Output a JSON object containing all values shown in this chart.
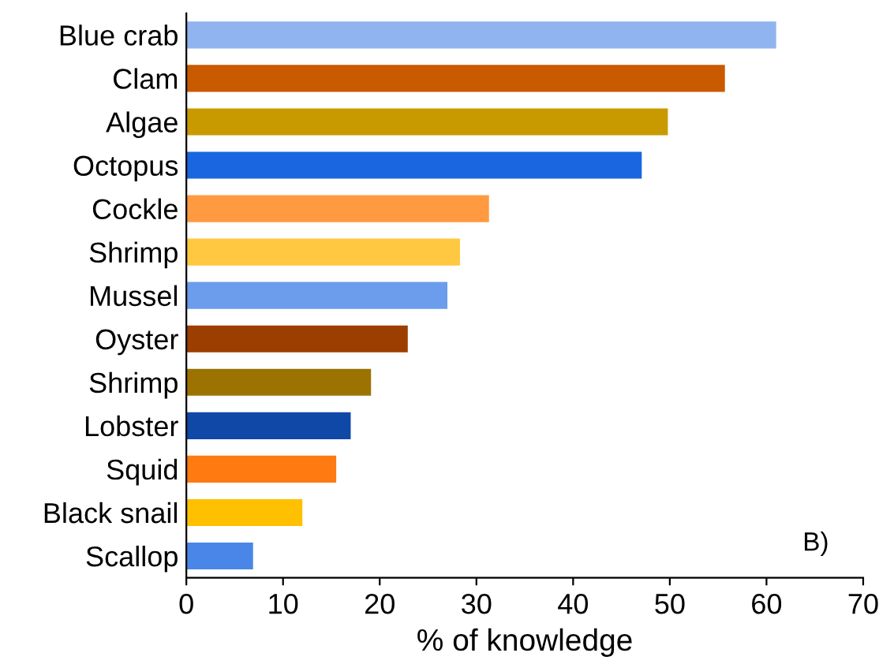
{
  "chart_data": {
    "type": "bar",
    "orientation": "horizontal",
    "xlabel": "% of knowledge",
    "categories": [
      "Blue crab",
      "Clam",
      "Algae",
      "Octopus",
      "Cockle",
      "Shrimp",
      "Mussel",
      "Oyster",
      "Shrimp",
      "Lobster",
      "Squid",
      "Black snail",
      "Scallop"
    ],
    "values": [
      61,
      55.7,
      49.8,
      47.1,
      31.3,
      28.3,
      27,
      22.9,
      19.1,
      17,
      15.5,
      12,
      6.9
    ],
    "colors": [
      "#8fb4f0",
      "#c95a00",
      "#c99a00",
      "#1a66e0",
      "#ff9a40",
      "#ffc840",
      "#6c9cec",
      "#9c3e00",
      "#9c7300",
      "#1048a8",
      "#ff7a10",
      "#ffc000",
      "#4a86e8"
    ],
    "xlim": [
      0,
      70
    ],
    "xticks": [
      0,
      10,
      20,
      30,
      40,
      50,
      60,
      70
    ],
    "grid": false,
    "annotations": [
      "B)"
    ]
  }
}
